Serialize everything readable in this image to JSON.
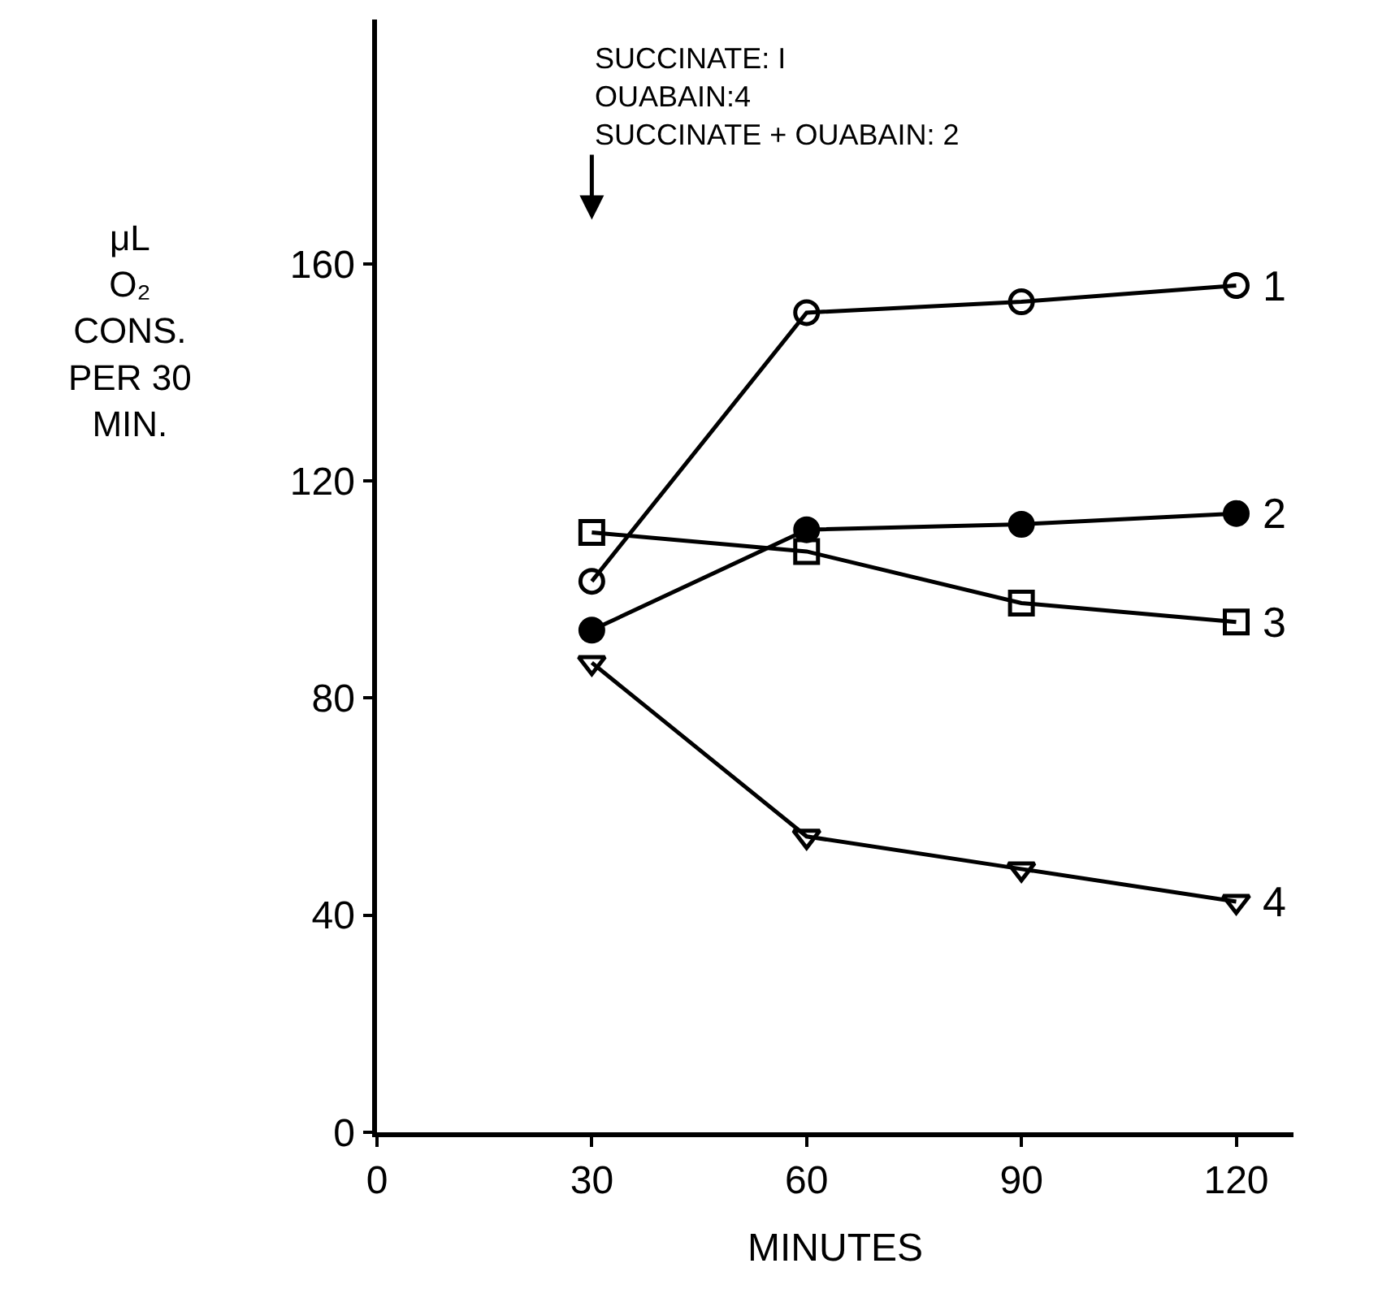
{
  "chart_data": {
    "type": "line",
    "xlabel": "MINUTES",
    "ylabel": "μL\nO₂\nCONS.\nPER 30\nMIN.",
    "x": [
      30,
      60,
      90,
      120
    ],
    "series": [
      {
        "name": "1",
        "color": "#000000",
        "marker": "circle",
        "values": [
          101.5,
          151,
          153,
          156
        ]
      },
      {
        "name": "2",
        "color": "#000000",
        "marker": "circle",
        "values": [
          92.5,
          111,
          112,
          114
        ]
      },
      {
        "name": "3",
        "color": "#000000",
        "marker": "square",
        "values": [
          110.5,
          107,
          97.5,
          94
        ]
      },
      {
        "name": "4",
        "color": "#000000",
        "marker": "triangle",
        "values": [
          86.5,
          54.5,
          48.5,
          42.5
        ]
      }
    ],
    "annotations": [
      "SUCCINATE: I\nOUABAIN:4\nSUCCINATE + OUABAIN: 2"
    ],
    "xlim": [
      0,
      128
    ],
    "ylim": [
      0,
      205
    ],
    "xticks": [
      0,
      30,
      60,
      90,
      120
    ],
    "yticks": [
      0,
      40,
      80,
      120,
      160
    ],
    "grid": false,
    "legend": false,
    "line_style": "solid"
  }
}
